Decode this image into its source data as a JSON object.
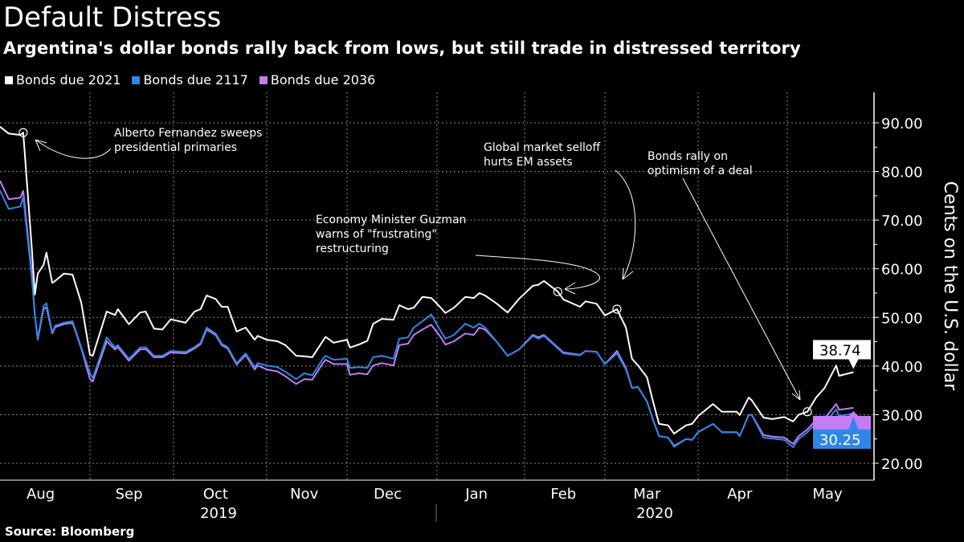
{
  "header": {
    "title": "Default Distress",
    "subtitle": "Argentina's dollar bonds rally back from lows, but still trade in distressed territory"
  },
  "source": "Source: Bloomberg",
  "chart_data": {
    "type": "line",
    "title": "Default Distress",
    "subtitle": "Argentina's dollar bonds rally back from lows, but still trade in distressed territory",
    "ylabel": "Cents on the U.S. dollar",
    "ylim": [
      17,
      96
    ],
    "yticks": [
      "20.00",
      "30.00",
      "40.00",
      "50.00",
      "60.00",
      "70.00",
      "80.00",
      "90.00"
    ],
    "ytick_values": [
      20,
      30,
      40,
      50,
      60,
      70,
      80,
      90
    ],
    "axis_side": "right",
    "grid": true,
    "legend_position": "top-left",
    "xticks": [
      "Aug",
      "Sep",
      "Oct",
      "Nov",
      "Dec",
      "Jan",
      "Feb",
      "Mar",
      "Apr",
      "May"
    ],
    "xtick_dates": [
      "2019-08-15",
      "2019-09-15",
      "2019-10-15",
      "2019-11-15",
      "2019-12-15",
      "2020-01-15",
      "2020-02-15",
      "2020-03-15",
      "2020-04-15",
      "2020-05-15"
    ],
    "years": [
      "2019",
      "2020"
    ],
    "x": [
      "2019-08-01",
      "2019-08-04",
      "2019-08-08",
      "2019-08-09",
      "2019-08-12",
      "2019-08-13",
      "2019-08-14",
      "2019-08-16",
      "2019-08-17",
      "2019-08-19",
      "2019-08-20",
      "2019-08-23",
      "2019-08-26",
      "2019-08-29",
      "2019-09-01",
      "2019-09-02",
      "2019-09-07",
      "2019-09-10",
      "2019-09-11",
      "2019-09-15",
      "2019-09-19",
      "2019-09-21",
      "2019-09-24",
      "2019-09-27",
      "2019-09-30",
      "2019-10-05",
      "2019-10-08",
      "2019-10-10",
      "2019-10-12",
      "2019-10-15",
      "2019-10-17",
      "2019-10-19",
      "2019-10-22",
      "2019-10-25",
      "2019-10-28",
      "2019-10-29",
      "2019-11-01",
      "2019-11-05",
      "2019-11-08",
      "2019-11-12",
      "2019-11-15",
      "2019-11-18",
      "2019-11-22",
      "2019-11-23",
      "2019-11-26",
      "2019-12-01",
      "2019-12-02",
      "2019-12-05",
      "2019-12-08",
      "2019-12-10",
      "2019-12-13",
      "2019-12-17",
      "2019-12-19",
      "2019-12-22",
      "2019-12-24",
      "2019-12-27",
      "2019-12-30",
      "2020-01-02",
      "2020-01-04",
      "2020-01-07",
      "2020-01-11",
      "2020-01-14",
      "2020-01-16",
      "2020-01-18",
      "2020-01-22",
      "2020-01-26",
      "2020-01-30",
      "2020-02-04",
      "2020-02-06",
      "2020-02-08",
      "2020-02-13",
      "2020-02-15",
      "2020-02-21",
      "2020-02-23",
      "2020-02-27",
      "2020-03-01",
      "2020-03-05",
      "2020-03-08",
      "2020-03-10",
      "2020-03-12",
      "2020-03-15",
      "2020-03-17",
      "2020-03-19",
      "2020-03-22",
      "2020-03-24",
      "2020-03-28",
      "2020-03-30",
      "2020-04-01",
      "2020-04-06",
      "2020-04-09",
      "2020-04-14",
      "2020-04-15",
      "2020-04-18",
      "2020-04-19",
      "2020-04-23",
      "2020-04-26",
      "2020-04-30",
      "2020-05-03",
      "2020-05-05",
      "2020-05-08",
      "2020-05-11",
      "2020-05-14",
      "2020-05-18",
      "2020-05-19",
      "2020-05-24"
    ],
    "series": [
      {
        "name": "Bonds due 2036",
        "color": "#c37cf2",
        "values": [
          78.1,
          74.3,
          74.6,
          76.0,
          59,
          50.4,
          45.4,
          51.7,
          52.1,
          46.7,
          48.0,
          48.6,
          48.9,
          43.6,
          37.3,
          36.8,
          45.1,
          43.4,
          43.9,
          41.1,
          43.4,
          43.5,
          41.8,
          41.8,
          42.8,
          42.6,
          43.6,
          44.5,
          47.5,
          46.4,
          44.3,
          43.6,
          40.3,
          42.3,
          39.3,
          40.1,
          39.3,
          38.9,
          37.9,
          36.3,
          37.3,
          37.2,
          40.6,
          41.3,
          40.4,
          40.4,
          38.2,
          38.5,
          38.3,
          40.1,
          40.6,
          40.1,
          44.3,
          44.6,
          46.4,
          47.5,
          48.5,
          46.2,
          44.4,
          45.1,
          46.7,
          46.4,
          47.9,
          47.5,
          45.1,
          42.1,
          43.4,
          46.4,
          45.9,
          46.4,
          43.8,
          42.8,
          42.3,
          43.1,
          42.9,
          40.4,
          43.1,
          39.6,
          35.5,
          35.7,
          32.7,
          28.9,
          25.6,
          25.3,
          23.6,
          25.0,
          24.8,
          26.4,
          28.1,
          26.4,
          26.4,
          25.6,
          29.9,
          30.0,
          25.8,
          25.5,
          25.3,
          24.0,
          25.6,
          27.0,
          28.9,
          29.2,
          32.2,
          31.0,
          31.4
        ]
      },
      {
        "name": "Bonds due 2117",
        "color": "#2f86e6",
        "last_label": "30.25",
        "values": [
          76.1,
          72.3,
          72.8,
          74.8,
          58,
          50.4,
          45.6,
          52.3,
          52.9,
          46.9,
          48.3,
          48.9,
          49.2,
          43.8,
          38.5,
          37.5,
          45.9,
          43.8,
          44.3,
          41.5,
          43.8,
          43.9,
          42.1,
          42.1,
          43.1,
          42.9,
          43.9,
          44.8,
          47.9,
          46.7,
          44.6,
          43.9,
          40.6,
          42.6,
          39.8,
          40.6,
          40.1,
          39.8,
          38.8,
          37.3,
          38.5,
          38.1,
          41.5,
          42.1,
          41.3,
          41.5,
          39.6,
          39.8,
          39.6,
          41.8,
          42.1,
          41.5,
          45.6,
          45.9,
          47.9,
          49.2,
          50.6,
          47.5,
          45.6,
          46.4,
          48.7,
          47.9,
          48.7,
          47.9,
          45.1,
          42.1,
          43.4,
          46.2,
          45.6,
          46.2,
          43.6,
          42.6,
          42.2,
          43.1,
          42.9,
          40.4,
          42.6,
          39.3,
          35.5,
          35.7,
          32.7,
          28.9,
          25.6,
          25.3,
          23.4,
          25.0,
          24.8,
          26.4,
          28.1,
          26.4,
          26.4,
          25.6,
          29.9,
          30.0,
          25.3,
          25.1,
          24.8,
          23.3,
          25.0,
          26.4,
          28.3,
          28.3,
          31.1,
          29.7,
          30.25
        ]
      },
      {
        "name": "Bonds due 2021",
        "color": "#ffffff",
        "last_label": "38.74",
        "values": [
          89.2,
          87.8,
          87.5,
          88.0,
          64,
          54.7,
          59,
          60.8,
          63.3,
          57.1,
          57.5,
          59,
          58.8,
          53,
          42.3,
          42.1,
          51.2,
          50.5,
          51.7,
          48.6,
          51,
          51.2,
          47.7,
          47.5,
          49.6,
          48.9,
          51.2,
          51.7,
          54.5,
          53.8,
          52.2,
          52.2,
          47.1,
          47.9,
          45.4,
          46.2,
          45.4,
          45.1,
          44.3,
          42.1,
          42.0,
          41.8,
          45.2,
          46,
          44.8,
          45.4,
          43.8,
          44.4,
          45.2,
          48.7,
          49.7,
          49.5,
          52.5,
          51.7,
          52.0,
          54.2,
          54.0,
          52.2,
          50.9,
          52.0,
          54.2,
          54.0,
          55.0,
          54.5,
          52.9,
          51.0,
          53.8,
          56.5,
          56.7,
          57.5,
          55.3,
          53.7,
          52.2,
          53.3,
          52.8,
          50.4,
          51.7,
          47.9,
          41.5,
          40.1,
          37.7,
          32.7,
          28.1,
          27.8,
          26.1,
          27.8,
          28.1,
          29.7,
          32.2,
          30.6,
          30.6,
          29.9,
          33.5,
          33.0,
          29.4,
          29.1,
          29.5,
          28.6,
          30.0,
          30.6,
          33.5,
          35.5,
          40.1,
          38.0,
          38.74
        ]
      }
    ],
    "annotations": [
      {
        "text": [
          "Alberto Fernandez sweeps",
          "presidential primaries"
        ],
        "date": "2019-08-09",
        "value": 88.0
      },
      {
        "text": [
          "Economy Minister Guzman",
          "warns of \"frustrating\"",
          "restructuring"
        ],
        "date": "2020-02-13",
        "value": 55.3
      },
      {
        "text": [
          "Global market selloff",
          "hurts EM assets"
        ],
        "date": "2020-03-05",
        "value": 51.7
      },
      {
        "text": [
          "Bonds rally on",
          "optimism of a deal"
        ],
        "date": "2020-05-08",
        "value": 30.6
      }
    ]
  },
  "legend": [
    {
      "label": "Bonds due 2021",
      "color": "#ffffff"
    },
    {
      "label": "Bonds due 2117",
      "color": "#2f86e6"
    },
    {
      "label": "Bonds due 2036",
      "color": "#c37cf2"
    }
  ]
}
